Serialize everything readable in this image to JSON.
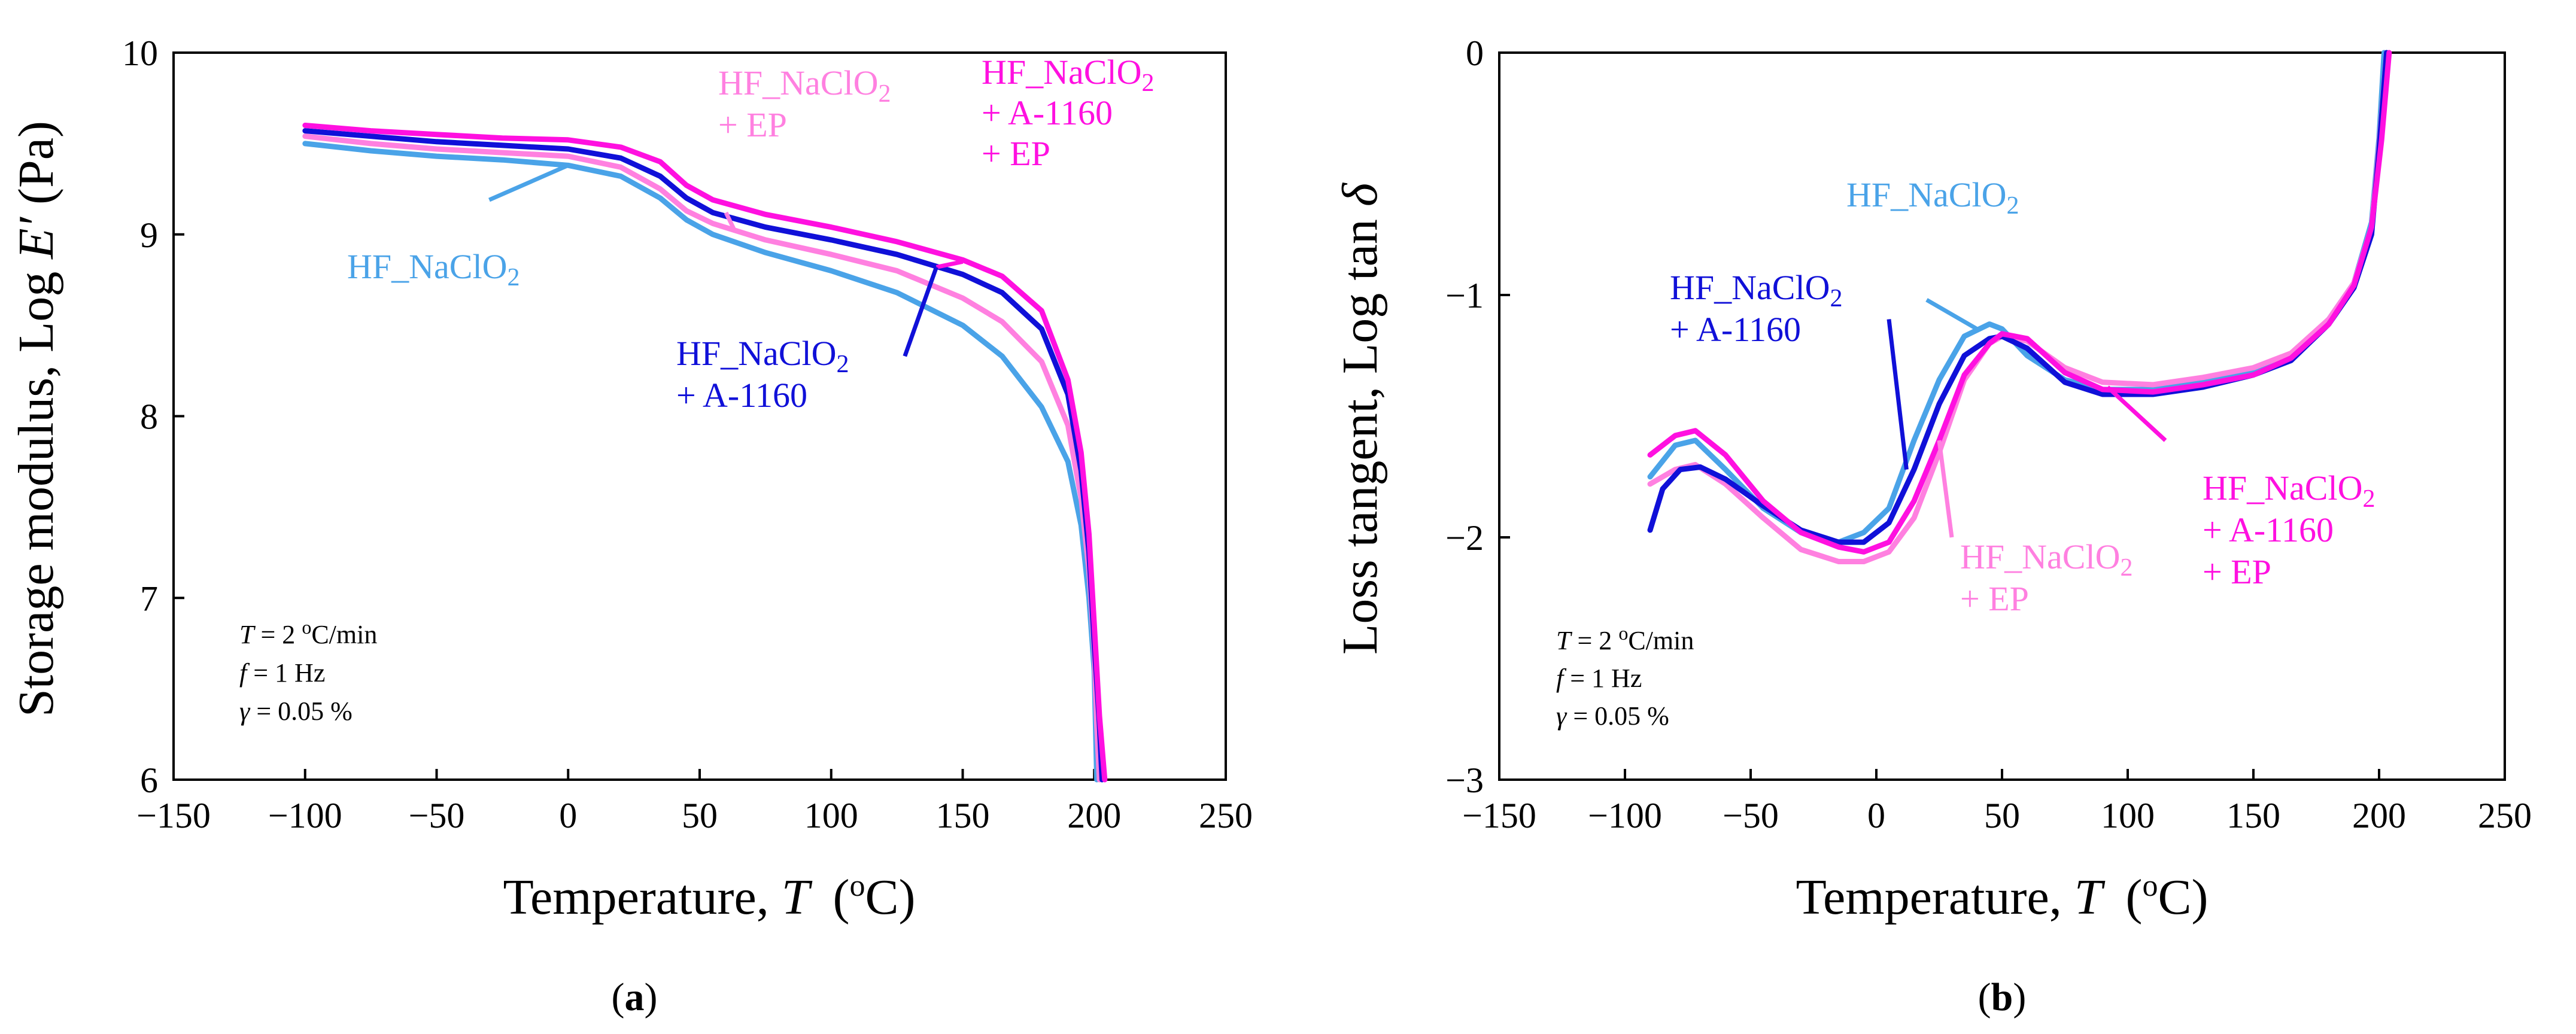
{
  "chart_data": [
    {
      "panel_label": "a",
      "type": "line",
      "xlabel": "Temperature,",
      "xvar": "T",
      "xunit_open": "(",
      "xunit_sup": "o",
      "xunit_close": "C)",
      "ylabel": "Storage modulus, Log",
      "yvar": "E′",
      "yunit": "(Pa)",
      "xlim": [
        -150,
        250
      ],
      "ylim": [
        6,
        10
      ],
      "xticks": [
        "−150",
        "−100",
        "−50",
        "0",
        "50",
        "100",
        "150",
        "200",
        "250"
      ],
      "yticks": [
        "6",
        "7",
        "8",
        "9",
        "10"
      ],
      "conditions": [
        {
          "var": "T",
          "eq": "= 2",
          "sup": "o",
          "rest": "C/min"
        },
        {
          "var": "f",
          "eq": "= 1 Hz",
          "sup": "",
          "rest": ""
        },
        {
          "var": "γ",
          "eq": "= 0.05 %",
          "sup": "",
          "rest": ""
        }
      ],
      "series": [
        {
          "name": "HF_NaClO2",
          "color": "#4aa3e8",
          "x": [
            -100,
            -75,
            -50,
            -25,
            0,
            20,
            35,
            45,
            55,
            75,
            100,
            125,
            150,
            165,
            180,
            190,
            195,
            198,
            200,
            201
          ],
          "y": [
            9.5,
            9.46,
            9.43,
            9.41,
            9.38,
            9.32,
            9.2,
            9.08,
            9.0,
            8.9,
            8.8,
            8.68,
            8.5,
            8.33,
            8.05,
            7.75,
            7.4,
            7.0,
            6.6,
            6.0
          ]
        },
        {
          "name": "HF_NaClO2 + EP",
          "color": "#ff80e0",
          "x": [
            -100,
            -75,
            -50,
            -25,
            0,
            20,
            35,
            45,
            55,
            75,
            100,
            125,
            150,
            165,
            180,
            190,
            195,
            198,
            200,
            201,
            202
          ],
          "y": [
            9.54,
            9.5,
            9.47,
            9.45,
            9.43,
            9.37,
            9.25,
            9.13,
            9.06,
            8.97,
            8.89,
            8.8,
            8.65,
            8.52,
            8.3,
            7.95,
            7.55,
            7.15,
            6.7,
            6.3,
            6.0
          ]
        },
        {
          "name": "HF_NaClO2 + A-1160",
          "color": "#1010d8",
          "x": [
            -100,
            -75,
            -50,
            -25,
            0,
            20,
            35,
            45,
            55,
            75,
            100,
            125,
            150,
            165,
            180,
            190,
            195,
            198,
            200,
            202,
            203
          ],
          "y": [
            9.57,
            9.54,
            9.51,
            9.49,
            9.47,
            9.42,
            9.32,
            9.2,
            9.12,
            9.04,
            8.97,
            8.89,
            8.78,
            8.68,
            8.48,
            8.12,
            7.7,
            7.25,
            6.75,
            6.3,
            6.0
          ]
        },
        {
          "name": "HF_NaClO2 + A-1160 + EP",
          "color": "#ff10e0",
          "x": [
            -100,
            -75,
            -50,
            -25,
            0,
            20,
            35,
            45,
            55,
            75,
            100,
            125,
            150,
            165,
            180,
            190,
            195,
            198,
            200,
            202,
            204
          ],
          "y": [
            9.6,
            9.57,
            9.55,
            9.53,
            9.52,
            9.48,
            9.4,
            9.27,
            9.19,
            9.11,
            9.04,
            8.96,
            8.86,
            8.77,
            8.58,
            8.2,
            7.8,
            7.35,
            6.85,
            6.35,
            6.0
          ]
        }
      ],
      "annotations": [
        {
          "lines": [
            "HF_NaClO",
            "2"
          ],
          "color": "#4aa3e8"
        },
        {
          "lines": [
            "HF_NaClO",
            "2",
            "+ EP"
          ],
          "color": "#ff80e0"
        },
        {
          "lines": [
            "HF_NaClO",
            "2",
            "+ A-1160",
            "+ EP"
          ],
          "color": "#ff10e0"
        },
        {
          "lines": [
            "HF_NaClO",
            "2",
            "+ A-1160"
          ],
          "color": "#1010d8"
        }
      ]
    },
    {
      "panel_label": "b",
      "type": "line",
      "xlabel": "Temperature,",
      "xvar": "T",
      "xunit_open": "(",
      "xunit_sup": "o",
      "xunit_close": "C)",
      "ylabel": "Loss tangent, Log tan",
      "yvar": "δ",
      "yunit": "",
      "xlim": [
        -150,
        250
      ],
      "ylim": [
        -3,
        0
      ],
      "xticks": [
        "−150",
        "−100",
        "−50",
        "0",
        "50",
        "100",
        "150",
        "200",
        "250"
      ],
      "yticks": [
        "−3",
        "−2",
        "−1",
        "0"
      ],
      "conditions": [
        {
          "var": "T",
          "eq": "= 2",
          "sup": "o",
          "rest": "C/min"
        },
        {
          "var": "f",
          "eq": "= 1 Hz",
          "sup": "",
          "rest": ""
        },
        {
          "var": "γ",
          "eq": "= 0.05 %",
          "sup": "",
          "rest": ""
        }
      ],
      "series": [
        {
          "name": "HF_NaClO2",
          "color": "#4aa3e8",
          "x": [
            -90,
            -80,
            -72,
            -60,
            -45,
            -30,
            -15,
            -5,
            5,
            15,
            25,
            35,
            45,
            50,
            60,
            75,
            90,
            110,
            130,
            150,
            165,
            180,
            190,
            197,
            200,
            202
          ],
          "y": [
            -1.75,
            -1.62,
            -1.6,
            -1.72,
            -1.88,
            -1.98,
            -2.02,
            -1.98,
            -1.88,
            -1.6,
            -1.35,
            -1.17,
            -1.12,
            -1.14,
            -1.25,
            -1.35,
            -1.39,
            -1.39,
            -1.36,
            -1.32,
            -1.25,
            -1.1,
            -0.95,
            -0.7,
            -0.35,
            0.0
          ]
        },
        {
          "name": "HF_NaClO2 + EP",
          "color": "#ff80e0",
          "x": [
            -90,
            -80,
            -72,
            -60,
            -45,
            -30,
            -15,
            -5,
            5,
            15,
            25,
            35,
            45,
            50,
            60,
            75,
            90,
            110,
            130,
            150,
            165,
            180,
            190,
            197,
            200,
            203
          ],
          "y": [
            -1.78,
            -1.72,
            -1.7,
            -1.78,
            -1.92,
            -2.05,
            -2.1,
            -2.1,
            -2.06,
            -1.92,
            -1.65,
            -1.35,
            -1.2,
            -1.17,
            -1.19,
            -1.3,
            -1.36,
            -1.37,
            -1.34,
            -1.3,
            -1.24,
            -1.1,
            -0.95,
            -0.72,
            -0.38,
            0.0
          ]
        },
        {
          "name": "HF_NaClO2 + A-1160",
          "color": "#1010d8",
          "x": [
            -90,
            -85,
            -78,
            -70,
            -60,
            -45,
            -30,
            -15,
            -5,
            5,
            15,
            25,
            35,
            45,
            50,
            60,
            75,
            90,
            110,
            130,
            150,
            165,
            180,
            190,
            197,
            200,
            203
          ],
          "y": [
            -1.97,
            -1.8,
            -1.72,
            -1.71,
            -1.76,
            -1.87,
            -1.97,
            -2.02,
            -2.02,
            -1.94,
            -1.72,
            -1.45,
            -1.25,
            -1.18,
            -1.17,
            -1.22,
            -1.36,
            -1.41,
            -1.41,
            -1.38,
            -1.33,
            -1.27,
            -1.12,
            -0.97,
            -0.75,
            -0.4,
            0.0
          ]
        },
        {
          "name": "HF_NaClO2 + A-1160 + EP",
          "color": "#ff10e0",
          "x": [
            -90,
            -80,
            -72,
            -60,
            -45,
            -30,
            -15,
            -5,
            5,
            15,
            25,
            35,
            45,
            50,
            60,
            75,
            90,
            110,
            130,
            150,
            165,
            180,
            190,
            197,
            201,
            204
          ],
          "y": [
            -1.66,
            -1.58,
            -1.56,
            -1.66,
            -1.85,
            -1.98,
            -2.04,
            -2.06,
            -2.02,
            -1.85,
            -1.6,
            -1.33,
            -1.2,
            -1.16,
            -1.18,
            -1.32,
            -1.39,
            -1.4,
            -1.37,
            -1.33,
            -1.26,
            -1.12,
            -0.96,
            -0.72,
            -0.36,
            0.0
          ]
        }
      ],
      "annotations": [
        {
          "lines": [
            "HF_NaClO",
            "2"
          ],
          "color": "#4aa3e8"
        },
        {
          "lines": [
            "HF_NaClO",
            "2",
            "+ A-1160"
          ],
          "color": "#1010d8"
        },
        {
          "lines": [
            "HF_NaClO",
            "2",
            "+ EP"
          ],
          "color": "#ff80e0"
        },
        {
          "lines": [
            "HF_NaClO",
            "2",
            "+ A-1160",
            "+ EP"
          ],
          "color": "#ff10e0"
        }
      ]
    }
  ]
}
